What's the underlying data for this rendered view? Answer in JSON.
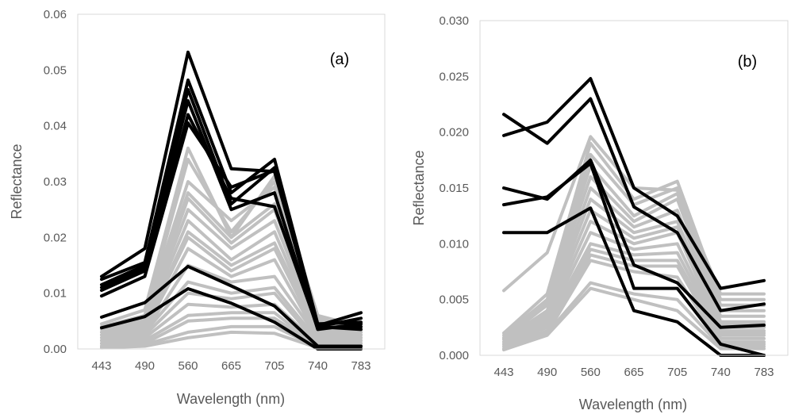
{
  "colors": {
    "grey_series": "#c0c0c0",
    "black_series": "#000000",
    "axis": "#d9d9d9",
    "text": "#595959"
  },
  "chart_data": [
    {
      "type": "line",
      "panel_label": "(a)",
      "xlabel": "Wavelength (nm)",
      "ylabel": "Reflectance",
      "categories": [
        "443",
        "490",
        "560",
        "665",
        "705",
        "740",
        "783"
      ],
      "ylim": [
        0,
        0.06
      ],
      "yticks": [
        "0.00",
        "0.01",
        "0.02",
        "0.03",
        "0.04",
        "0.05",
        "0.06"
      ],
      "grid": false,
      "grey_series": [
        [
          0.0045,
          0.007,
          0.036,
          0.02,
          0.031,
          0.006,
          0.004
        ],
        [
          0.004,
          0.006,
          0.034,
          0.021,
          0.03,
          0.0055,
          0.0035
        ],
        [
          0.0035,
          0.006,
          0.03,
          0.023,
          0.029,
          0.005,
          0.003
        ],
        [
          0.003,
          0.0055,
          0.028,
          0.02,
          0.026,
          0.0045,
          0.003
        ],
        [
          0.003,
          0.005,
          0.027,
          0.019,
          0.025,
          0.004,
          0.0025
        ],
        [
          0.0025,
          0.005,
          0.025,
          0.018,
          0.023,
          0.0035,
          0.0025
        ],
        [
          0.0025,
          0.0045,
          0.023,
          0.016,
          0.021,
          0.003,
          0.002
        ],
        [
          0.002,
          0.004,
          0.021,
          0.015,
          0.019,
          0.003,
          0.002
        ],
        [
          0.002,
          0.004,
          0.02,
          0.014,
          0.018,
          0.0025,
          0.0015
        ],
        [
          0.0015,
          0.0035,
          0.018,
          0.013,
          0.016,
          0.002,
          0.0015
        ],
        [
          0.0015,
          0.003,
          0.015,
          0.012,
          0.013,
          0.002,
          0.001
        ],
        [
          0.001,
          0.003,
          0.012,
          0.01,
          0.011,
          0.0015,
          0.001
        ],
        [
          0.001,
          0.0025,
          0.01,
          0.009,
          0.01,
          0.001,
          0.001
        ],
        [
          0.001,
          0.002,
          0.008,
          0.0075,
          0.008,
          0.001,
          0.0005
        ],
        [
          0.0005,
          0.0015,
          0.006,
          0.0065,
          0.0065,
          0.0005,
          0.0005
        ],
        [
          0.0005,
          0.001,
          0.005,
          0.0055,
          0.0055,
          0.0005,
          0.0005
        ],
        [
          0.0003,
          0.0008,
          0.003,
          0.004,
          0.004,
          0.0003,
          0.0003
        ],
        [
          0.0002,
          0.0005,
          0.002,
          0.003,
          0.0028,
          0.0002,
          0.0002
        ]
      ],
      "black_series": [
        [
          0.013,
          0.018,
          0.0532,
          0.0323,
          0.0318,
          0.0042,
          0.0065
        ],
        [
          0.0125,
          0.0155,
          0.0482,
          0.028,
          0.034,
          0.0045,
          0.0048
        ],
        [
          0.0115,
          0.015,
          0.0465,
          0.026,
          0.0325,
          0.004,
          0.0055
        ],
        [
          0.011,
          0.0145,
          0.0445,
          0.025,
          0.028,
          0.0035,
          0.0045
        ],
        [
          0.0105,
          0.014,
          0.042,
          0.027,
          0.0255,
          0.0038,
          0.004
        ],
        [
          0.0095,
          0.013,
          0.0405,
          0.029,
          0.032,
          0.004,
          0.0035
        ],
        [
          0.0057,
          0.0083,
          0.0148,
          0.0113,
          0.0077,
          0.0005,
          0.0005
        ],
        [
          0.0038,
          0.0058,
          0.0108,
          0.0082,
          0.0048,
          0.0,
          0.0
        ]
      ]
    },
    {
      "type": "line",
      "panel_label": "(b)",
      "xlabel": "Wavelength (nm)",
      "ylabel": "Reflectance",
      "categories": [
        "443",
        "490",
        "560",
        "665",
        "705",
        "740",
        "783"
      ],
      "ylim": [
        0,
        0.03
      ],
      "yticks": [
        "0.000",
        "0.005",
        "0.010",
        "0.015",
        "0.020",
        "0.025",
        "0.030"
      ],
      "grid": false,
      "grey_series": [
        [
          0.0058,
          0.0092,
          0.0196,
          0.015,
          0.0148,
          0.0055,
          0.0055
        ],
        [
          0.002,
          0.0055,
          0.019,
          0.014,
          0.0156,
          0.005,
          0.005
        ],
        [
          0.0018,
          0.005,
          0.018,
          0.0135,
          0.015,
          0.0045,
          0.0045
        ],
        [
          0.0016,
          0.0048,
          0.017,
          0.0125,
          0.0145,
          0.004,
          0.004
        ],
        [
          0.0015,
          0.0045,
          0.016,
          0.012,
          0.014,
          0.0035,
          0.0035
        ],
        [
          0.0014,
          0.004,
          0.015,
          0.0115,
          0.013,
          0.003,
          0.003
        ],
        [
          0.0012,
          0.0038,
          0.014,
          0.011,
          0.012,
          0.0028,
          0.0028
        ],
        [
          0.0012,
          0.0035,
          0.013,
          0.0105,
          0.0115,
          0.0025,
          0.0025
        ],
        [
          0.001,
          0.0032,
          0.012,
          0.01,
          0.011,
          0.0022,
          0.0022
        ],
        [
          0.001,
          0.003,
          0.011,
          0.0095,
          0.01,
          0.002,
          0.002
        ],
        [
          0.0008,
          0.0028,
          0.01,
          0.009,
          0.0092,
          0.0018,
          0.0018
        ],
        [
          0.0008,
          0.0025,
          0.0095,
          0.0085,
          0.0085,
          0.0015,
          0.0015
        ],
        [
          0.0006,
          0.0022,
          0.009,
          0.008,
          0.008,
          0.0012,
          0.0012
        ],
        [
          0.0006,
          0.002,
          0.0085,
          0.0075,
          0.007,
          0.001,
          0.001
        ],
        [
          0.0005,
          0.002,
          0.0065,
          0.0055,
          0.005,
          0.0008,
          0.0008
        ],
        [
          0.0005,
          0.0018,
          0.006,
          0.005,
          0.004,
          0.0006,
          0.0006
        ]
      ],
      "black_series": [
        [
          0.0216,
          0.019,
          0.023,
          0.0133,
          0.011,
          0.004,
          0.0046
        ],
        [
          0.0197,
          0.0209,
          0.0248,
          0.015,
          0.0125,
          0.006,
          0.0067
        ],
        [
          0.015,
          0.014,
          0.0175,
          0.0081,
          0.0065,
          0.0025,
          0.0027
        ],
        [
          0.0135,
          0.0142,
          0.0172,
          0.006,
          0.006,
          0.001,
          0.0
        ],
        [
          0.011,
          0.011,
          0.0132,
          0.004,
          0.003,
          0.0,
          0.0
        ]
      ]
    }
  ]
}
